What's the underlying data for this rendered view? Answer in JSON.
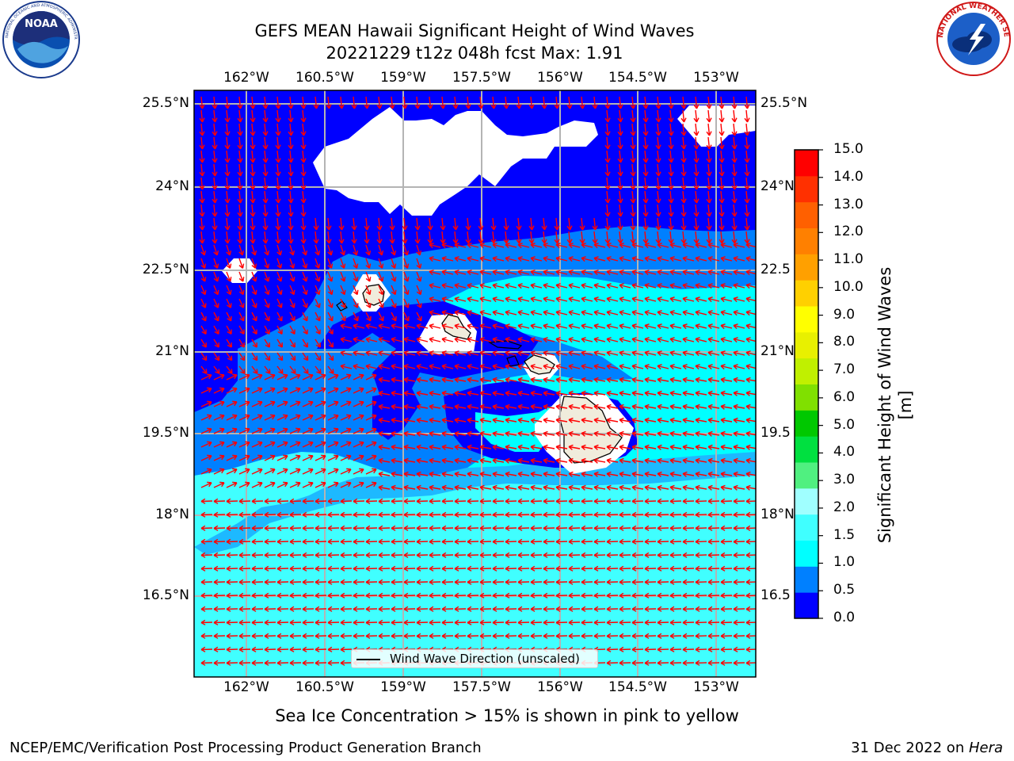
{
  "header": {
    "title_line1": "GEFS MEAN Hawaii Significant Height of Wind Waves",
    "title_line2": "20221229 t12z 048h fcst   Max: 1.91"
  },
  "logos": {
    "left": {
      "name": "noaa-logo",
      "text": "NOAA",
      "ring_text": "NATIONAL OCEANIC AND ATMOSPHERIC ADMINISTRATION · U.S. DEPARTMENT OF COMMERCE"
    },
    "right": {
      "name": "nws-logo",
      "ring_text": "NATIONAL WEATHER SERVICE"
    }
  },
  "map": {
    "lon_ticks": [
      "162°W",
      "160.5°W",
      "159°W",
      "157.5°W",
      "156°W",
      "154.5°W",
      "153°W"
    ],
    "lat_ticks_left": [
      "25.5°N",
      "24°N",
      "22.5°N",
      "21°N",
      "19.5°N",
      "18°N",
      "16.5°N"
    ],
    "lat_ticks_right": [
      "25.5°N",
      "24°N",
      "22.5",
      "21°N",
      "19.5",
      "18°N",
      "16.5"
    ],
    "legend_label": "Wind Wave Direction (unscaled)",
    "fill_colors": {
      "ocean_0_0.5": "#0000ff",
      "ocean_0.5_1": "#0080ff",
      "ocean_1_1.5": "#00ffff",
      "ocean_1.5_2": "#40ffff",
      "missing": "#ffffff",
      "land": "#f0ecdc",
      "arrows": "#ff0000",
      "grid": "#b4b4b4"
    }
  },
  "colorbar": {
    "label": "Significant Height of Wind Waves [m]",
    "ticks": [
      "15.0",
      "14.0",
      "13.0",
      "12.0",
      "11.0",
      "10.0",
      "9.0",
      "8.0",
      "7.0",
      "6.0",
      "5.0",
      "4.0",
      "3.0",
      "2.0",
      "1.5",
      "1.0",
      "0.5",
      "0.0"
    ],
    "colors_bottom_to_top": [
      "#0000ff",
      "#0080ff",
      "#00ffff",
      "#40ffff",
      "#a0ffff",
      "#50f080",
      "#00e040",
      "#00c800",
      "#80e000",
      "#c0f000",
      "#e8f000",
      "#ffff00",
      "#ffd000",
      "#ffa000",
      "#ff8000",
      "#ff6000",
      "#ff3000",
      "#ff0000"
    ]
  },
  "notes": {
    "sea_ice": "Sea Ice Concentration > 15% is shown in pink to yellow",
    "footer_left": "NCEP/EMC/Verification Post Processing Product Generation Branch",
    "footer_right_prefix": "31 Dec 2022 on ",
    "footer_right_host": "Hera"
  }
}
